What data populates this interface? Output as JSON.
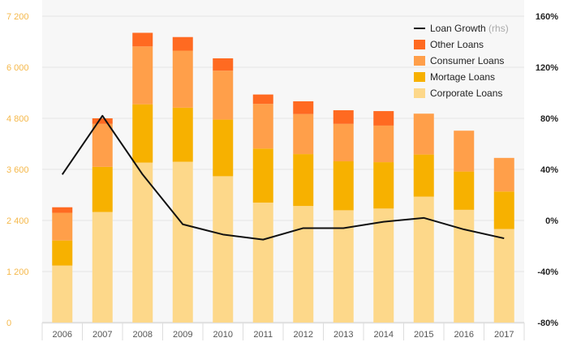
{
  "chart_data": {
    "type": "bar",
    "stacked": true,
    "categories": [
      "2006",
      "2007",
      "2008",
      "2009",
      "2010",
      "2011",
      "2012",
      "2013",
      "2014",
      "2015",
      "2016",
      "2017"
    ],
    "series": [
      {
        "name": "Corporate Loans",
        "color": "#fdd88a",
        "values": [
          1340,
          2600,
          3760,
          3780,
          3440,
          2820,
          2740,
          2640,
          2680,
          2960,
          2650,
          2200
        ]
      },
      {
        "name": "Mortage Loans",
        "color": "#f7b100",
        "values": [
          590,
          1060,
          1370,
          1270,
          1330,
          1270,
          1220,
          1150,
          1090,
          990,
          900,
          880
        ]
      },
      {
        "name": "Consumer Loans",
        "color": "#ff9f4a",
        "values": [
          650,
          1010,
          1360,
          1340,
          1150,
          1050,
          940,
          880,
          860,
          960,
          960,
          790
        ]
      },
      {
        "name": "Other Loans",
        "color": "#ff6a21",
        "values": [
          130,
          130,
          320,
          320,
          290,
          220,
          300,
          320,
          340,
          0,
          0,
          0
        ]
      }
    ],
    "line_series": {
      "name": "Loan Growth",
      "name_suffix": "(rhs)",
      "axis": "right",
      "color": "#111111",
      "values": [
        36,
        82,
        36,
        -3,
        -11,
        -15,
        -6,
        -6,
        -1,
        2,
        -7,
        -14
      ]
    },
    "y_left": {
      "min": 0,
      "max": 7200,
      "ticks": [
        "0",
        "1 200",
        "2 400",
        "3 600",
        "4 800",
        "6 000",
        "7 200"
      ]
    },
    "y_right": {
      "min": -80,
      "max": 160,
      "ticks": [
        "-80%",
        "-40%",
        "0%",
        "40%",
        "80%",
        "120%",
        "160%"
      ]
    },
    "grid": true,
    "legend_position": "top-right",
    "legend_order": [
      "Loan Growth",
      "Other Loans",
      "Consumer Loans",
      "Mortage Loans",
      "Corporate Loans"
    ]
  }
}
